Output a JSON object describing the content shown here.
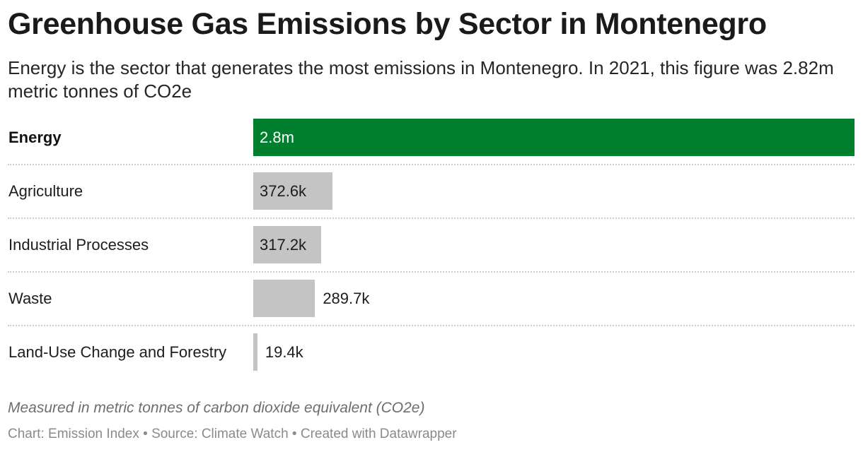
{
  "chart_data": {
    "type": "bar",
    "orientation": "horizontal",
    "title": "Greenhouse Gas Emissions by Sector in Montenegro",
    "subtitle": "Energy is the sector that generates the most emissions in Montenegro. In 2021, this figure was 2.82m metric tonnes of CO2e",
    "categories": [
      "Energy",
      "Agriculture",
      "Industrial Processes",
      "Waste",
      "Land-Use Change and Forestry"
    ],
    "values": [
      2820000,
      372600,
      317200,
      289700,
      19400
    ],
    "value_labels": [
      "2.8m",
      "372.6k",
      "317.2k",
      "289.7k",
      "19.4k"
    ],
    "highlight": "Energy",
    "colors": {
      "highlight": "#00802e",
      "default": "#c4c4c4"
    },
    "xlim": [
      0,
      2820000
    ],
    "grid": false,
    "legend": "none",
    "notes": "Measured in metric tonnes of carbon dioxide equivalent (CO2e)",
    "footer": "Chart: Emission Index • Source: Climate Watch • Created with Datawrapper"
  }
}
